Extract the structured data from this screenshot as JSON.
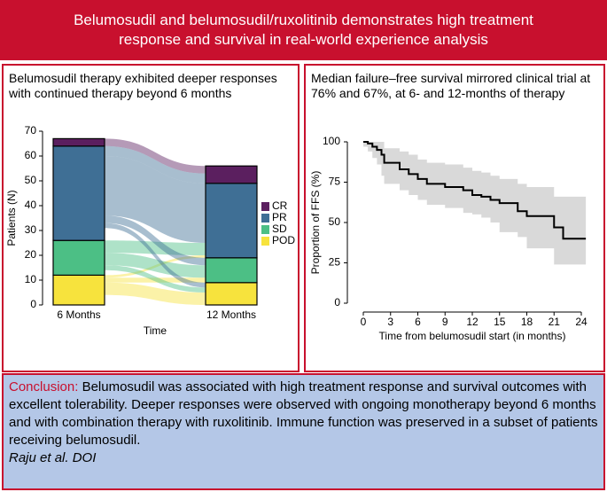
{
  "header": {
    "title": "Belumosudil and belumosudil/ruxolitinib demonstrates high treatment response and survival in real-world experience analysis"
  },
  "conclusion": {
    "label": "Conclusion:",
    "text": "Belumosudil was associated with high treatment response and survival outcomes with excellent tolerability. Deeper responses were observed with ongoing monotherapy beyond 6 months and with combination therapy with ruxolitinib. Immune function was preserved in a subset of patients receiving belumosudil.",
    "citation": "Raju et al. DOI"
  },
  "chart_data": [
    {
      "type": "alluvial",
      "title": "Belumosudil therapy exhibited deeper responses with continued therapy beyond 6 months",
      "xlabel": "Time",
      "ylabel": "Patients (N)",
      "categories": [
        "6 Months",
        "12 Months"
      ],
      "series": [
        {
          "name": "CR",
          "color": "#5b1f5f",
          "values": [
            3,
            7
          ]
        },
        {
          "name": "PR",
          "color": "#3f6f95",
          "values": [
            38,
            30
          ]
        },
        {
          "name": "SD",
          "color": "#4cbf85",
          "values": [
            14,
            10
          ]
        },
        {
          "name": "POD",
          "color": "#f7e33d",
          "values": [
            12,
            9
          ]
        }
      ],
      "flows": [
        {
          "source": "CR",
          "target": "CR",
          "value": 3
        },
        {
          "source": "PR",
          "target": "CR",
          "value": 4
        },
        {
          "source": "PR",
          "target": "PR",
          "value": 24
        },
        {
          "source": "SD",
          "target": "PR",
          "value": 5
        },
        {
          "source": "POD",
          "target": "PR",
          "value": 1
        },
        {
          "source": "PR",
          "target": "SD",
          "value": 3
        },
        {
          "source": "SD",
          "target": "SD",
          "value": 5
        },
        {
          "source": "POD",
          "target": "SD",
          "value": 2
        },
        {
          "source": "PR",
          "target": "POD",
          "value": 2
        },
        {
          "source": "SD",
          "target": "POD",
          "value": 2
        },
        {
          "source": "POD",
          "target": "POD",
          "value": 5
        }
      ],
      "ylim": [
        0,
        70
      ],
      "yticks": [
        0,
        10,
        20,
        30,
        40,
        50,
        60,
        70
      ]
    },
    {
      "type": "survival",
      "title": "Median failure–free survival mirrored clinical trial at 76% and 67%, at 6- and 12-months of therapy",
      "xlabel": "Time from belumosudil start (in months)",
      "ylabel": "Proportion of FFS (%)",
      "color": "#000000",
      "ci_color": "#d9d9d9",
      "x": [
        0,
        0.5,
        1,
        1.5,
        2,
        2.3,
        4,
        5,
        6,
        7,
        9,
        11,
        12,
        13,
        14,
        15,
        17,
        18,
        21,
        22,
        24.5
      ],
      "values": [
        100,
        99,
        97,
        95,
        92,
        87,
        83,
        80,
        77,
        74,
        72,
        70,
        67,
        66,
        64,
        62,
        57,
        54,
        47,
        40,
        40
      ],
      "ci_upper": [
        100,
        100,
        100,
        100,
        100,
        96,
        94,
        92,
        89,
        87,
        86,
        84,
        82,
        81,
        79,
        77,
        74,
        72,
        66,
        66,
        66
      ],
      "ci_lower": [
        100,
        97,
        94,
        90,
        86,
        79,
        74,
        70,
        67,
        64,
        61,
        59,
        56,
        55,
        53,
        50,
        44,
        41,
        34,
        24,
        24
      ],
      "xlim": [
        0,
        24
      ],
      "xticks": [
        0,
        3,
        6,
        9,
        12,
        15,
        18,
        21,
        24
      ],
      "ylim": [
        0,
        100
      ],
      "yticks": [
        0,
        25,
        50,
        75,
        100
      ]
    }
  ]
}
